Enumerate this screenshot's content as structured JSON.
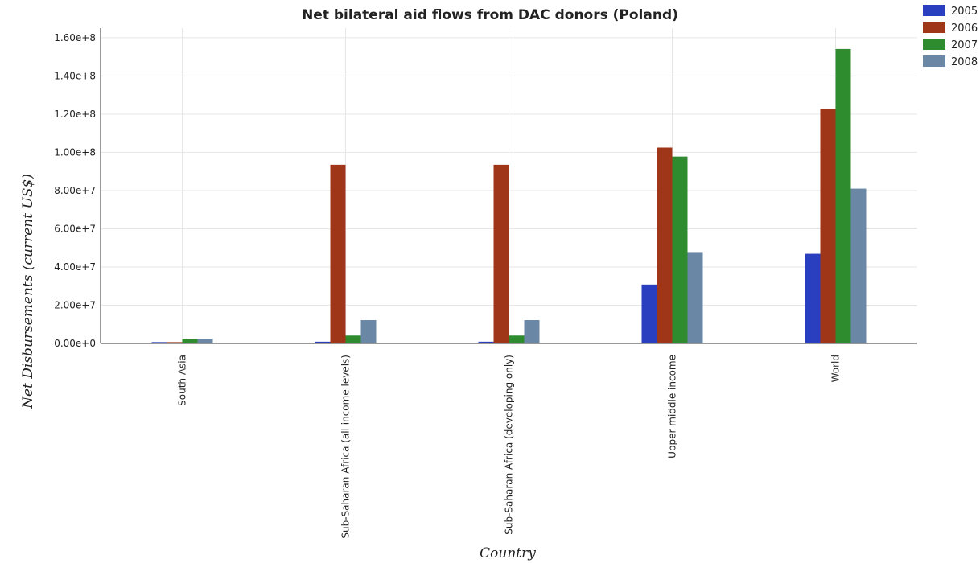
{
  "chart_data": {
    "type": "bar",
    "title": "Net bilateral aid flows from DAC donors (Poland)",
    "xlabel": "Country",
    "ylabel": "Net Disbursements (current US$)",
    "categories": [
      "South Asia",
      "Sub-Saharan Africa (all income levels)",
      "Sub-Saharan Africa (developing only)",
      "Upper middle income",
      "World"
    ],
    "series": [
      {
        "name": "2005",
        "color": "#2a3fbf",
        "values": [
          700000,
          900000,
          900000,
          30800000,
          46900000
        ]
      },
      {
        "name": "2006",
        "color": "#a03618",
        "values": [
          700000,
          93500000,
          93500000,
          102500000,
          122600000
        ]
      },
      {
        "name": "2007",
        "color": "#2e8b2e",
        "values": [
          2500000,
          4100000,
          4100000,
          97800000,
          154100000
        ]
      },
      {
        "name": "2008",
        "color": "#6a88a6",
        "values": [
          2500000,
          12200000,
          12200000,
          47800000,
          81000000
        ]
      }
    ],
    "ylim": [
      0,
      165000000
    ],
    "yticks": [
      0,
      20000000,
      40000000,
      60000000,
      80000000,
      100000000,
      120000000,
      140000000,
      160000000
    ],
    "ytick_labels": [
      "0.00e+0",
      "2.00e+7",
      "4.00e+7",
      "6.00e+7",
      "8.00e+7",
      "1.00e+8",
      "1.20e+8",
      "1.40e+8",
      "1.60e+8"
    ],
    "grid": true,
    "legend_position": "top-right"
  }
}
